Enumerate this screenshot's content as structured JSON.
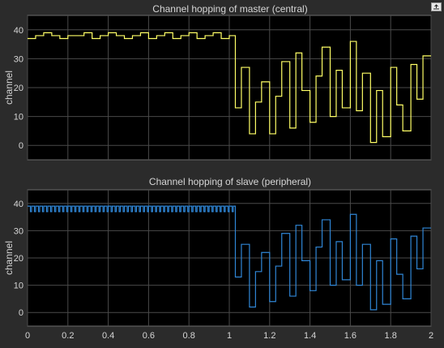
{
  "window": {
    "undock_icon": "undock-arrow-icon"
  },
  "colors": {
    "background": "#2b2b2b",
    "axes": "#000000",
    "grid": "#4a4a4a",
    "text": "#d6d6d6",
    "master": "#ffff66",
    "slave": "#2f86d6"
  },
  "chart_data": [
    {
      "type": "line",
      "title": "Channel hopping of master (central)",
      "xlabel": "",
      "ylabel": "channel",
      "xlim": [
        0,
        2
      ],
      "ylim": [
        -5,
        45
      ],
      "xticks": [],
      "yticks": [
        "0",
        "10",
        "20",
        "30",
        "40"
      ],
      "grid": true,
      "step": true,
      "series": [
        {
          "color": "#ffff66",
          "x": [
            0,
            0.04,
            0.08,
            0.12,
            0.16,
            0.2,
            0.24,
            0.28,
            0.32,
            0.36,
            0.4,
            0.44,
            0.48,
            0.52,
            0.56,
            0.6,
            0.64,
            0.68,
            0.72,
            0.76,
            0.8,
            0.84,
            0.88,
            0.92,
            0.96,
            1.0,
            1.03,
            1.06,
            1.1,
            1.13,
            1.16,
            1.2,
            1.23,
            1.26,
            1.3,
            1.33,
            1.36,
            1.4,
            1.43,
            1.46,
            1.5,
            1.53,
            1.56,
            1.6,
            1.63,
            1.66,
            1.7,
            1.73,
            1.76,
            1.8,
            1.83,
            1.86,
            1.9,
            1.93,
            1.96,
            2.0
          ],
          "values": [
            37,
            38,
            39,
            38,
            37,
            38,
            38,
            39,
            37,
            38,
            39,
            38,
            37,
            38,
            39,
            37,
            38,
            39,
            37,
            38,
            39,
            37,
            38,
            39,
            37,
            38,
            13,
            27,
            4,
            15,
            22,
            4,
            17,
            29,
            6,
            32,
            19,
            8,
            24,
            34,
            10,
            26,
            13,
            36,
            12,
            25,
            1,
            19,
            3,
            27,
            14,
            5,
            28,
            16,
            31,
            31
          ]
        }
      ]
    },
    {
      "type": "line",
      "title": "Channel hopping of slave (peripheral)",
      "xlabel": "",
      "ylabel": "channel",
      "xlim": [
        0,
        2
      ],
      "ylim": [
        -5,
        45
      ],
      "xticks": [
        "0",
        "0.2",
        "0.4",
        "0.6",
        "0.8",
        "1",
        "1.2",
        "1.4",
        "1.6",
        "1.8",
        "2"
      ],
      "yticks": [
        "0",
        "10",
        "20",
        "30",
        "40"
      ],
      "grid": true,
      "step": true,
      "ripple": {
        "x_start": 0,
        "x_end": 1.02,
        "period": 0.02,
        "high": 39,
        "low": 37
      },
      "series": [
        {
          "color": "#2f86d6",
          "x": [
            1.02,
            1.03,
            1.06,
            1.1,
            1.13,
            1.16,
            1.2,
            1.23,
            1.26,
            1.3,
            1.33,
            1.36,
            1.4,
            1.43,
            1.46,
            1.5,
            1.53,
            1.56,
            1.6,
            1.63,
            1.66,
            1.7,
            1.73,
            1.76,
            1.8,
            1.83,
            1.86,
            1.9,
            1.93,
            1.96,
            2.0
          ],
          "values": [
            39,
            13,
            25,
            2,
            15,
            22,
            4,
            17,
            29,
            6,
            32,
            19,
            8,
            24,
            34,
            10,
            26,
            12,
            36,
            10,
            25,
            1,
            19,
            3,
            27,
            14,
            5,
            28,
            16,
            31,
            31
          ]
        }
      ]
    }
  ]
}
